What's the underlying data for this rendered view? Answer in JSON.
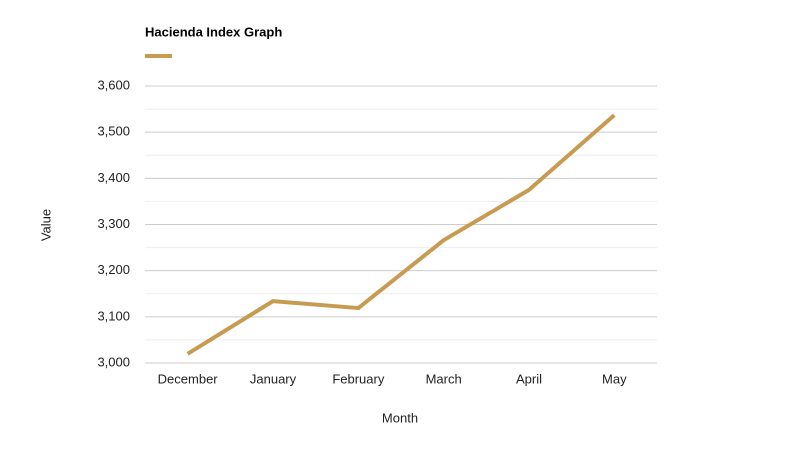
{
  "chart_data": {
    "type": "line",
    "title": "Hacienda Index Graph",
    "x_label": "Month",
    "y_label": "Value",
    "categories": [
      "December",
      "January",
      "February",
      "March",
      "April",
      "May"
    ],
    "series": [
      {
        "color": "#c89b52",
        "values": [
          3020,
          3134,
          3119,
          3266,
          3375,
          3537
        ]
      }
    ],
    "ylim": [
      3000,
      3600
    ],
    "yticks": [
      {
        "value": 3000,
        "label": "3,000"
      },
      {
        "value": 3100,
        "label": "3,100"
      },
      {
        "value": 3200,
        "label": "3,200"
      },
      {
        "value": 3300,
        "label": "3,300"
      },
      {
        "value": 3400,
        "label": "3,400"
      },
      {
        "value": 3500,
        "label": "3,500"
      },
      {
        "value": 3600,
        "label": "3,600"
      }
    ],
    "grid": true
  }
}
